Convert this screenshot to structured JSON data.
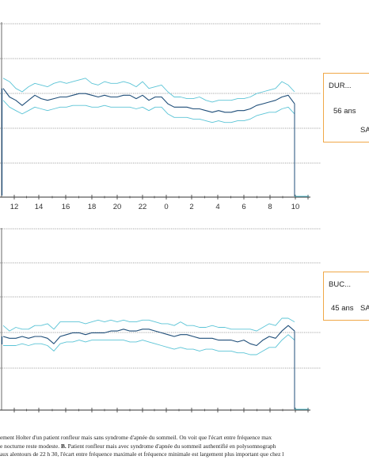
{
  "chart_data": [
    {
      "panel": "A",
      "type": "line",
      "x_ticks": [
        "12",
        "14",
        "16",
        "18",
        "20",
        "22",
        "0",
        "2",
        "4",
        "6",
        "8",
        "10"
      ],
      "y_grid_lines": 4,
      "series": [
        {
          "role": "mean",
          "color": "#1f4e79",
          "x": [
            11,
            11.5,
            12,
            12.5,
            13,
            13.5,
            14,
            14.5,
            15,
            15.5,
            16,
            16.5,
            17,
            17.5,
            18,
            18.5,
            19,
            19.5,
            20,
            20.5,
            21,
            21.5,
            22,
            22.5,
            23,
            23.5,
            0,
            0.5,
            1,
            1.5,
            2,
            2.5,
            3,
            3.5,
            4,
            4.5,
            5,
            5.5,
            6,
            6.5,
            7,
            7.5,
            8,
            8.5,
            9,
            9.5,
            10
          ],
          "y": [
            62,
            57,
            55,
            52,
            55,
            58,
            56,
            55,
            56,
            57,
            57,
            58,
            59,
            59,
            58,
            57,
            58,
            57,
            57,
            58,
            58,
            56,
            58,
            55,
            57,
            57,
            53,
            51,
            51,
            51,
            50,
            50,
            49,
            48,
            49,
            48,
            48,
            49,
            49,
            50,
            52,
            53,
            54,
            55,
            57,
            58,
            53
          ]
        },
        {
          "role": "max",
          "color": "#5bc4d6",
          "x": [
            11,
            11.5,
            12,
            12.5,
            13,
            13.5,
            14,
            14.5,
            15,
            15.5,
            16,
            16.5,
            17,
            17.5,
            18,
            18.5,
            19,
            19.5,
            20,
            20.5,
            21,
            21.5,
            22,
            22.5,
            23,
            23.5,
            0,
            0.5,
            1,
            1.5,
            2,
            2.5,
            3,
            3.5,
            4,
            4.5,
            5,
            5.5,
            6,
            6.5,
            7,
            7.5,
            8,
            8.5,
            9,
            9.5,
            10
          ],
          "y": [
            68,
            66,
            62,
            60,
            63,
            65,
            64,
            63,
            65,
            66,
            65,
            66,
            67,
            68,
            65,
            64,
            66,
            65,
            65,
            66,
            65,
            63,
            66,
            62,
            63,
            64,
            60,
            57,
            57,
            56,
            56,
            57,
            55,
            54,
            55,
            55,
            55,
            56,
            56,
            57,
            59,
            60,
            61,
            62,
            66,
            64,
            60
          ]
        },
        {
          "role": "min",
          "color": "#5bc4d6",
          "x": [
            11,
            11.5,
            12,
            12.5,
            13,
            13.5,
            14,
            14.5,
            15,
            15.5,
            16,
            16.5,
            17,
            17.5,
            18,
            18.5,
            19,
            19.5,
            20,
            20.5,
            21,
            21.5,
            22,
            22.5,
            23,
            23.5,
            0,
            0.5,
            1,
            1.5,
            2,
            2.5,
            3,
            3.5,
            4,
            4.5,
            5,
            5.5,
            6,
            6.5,
            7,
            7.5,
            8,
            8.5,
            9,
            9.5,
            10
          ],
          "y": [
            55,
            51,
            49,
            47,
            49,
            51,
            50,
            49,
            50,
            51,
            51,
            52,
            52,
            52,
            51,
            51,
            52,
            51,
            51,
            51,
            51,
            50,
            51,
            49,
            51,
            51,
            47,
            45,
            45,
            45,
            44,
            44,
            43,
            42,
            43,
            42,
            42,
            43,
            43,
            44,
            46,
            47,
            48,
            48,
            50,
            51,
            47
          ]
        }
      ]
    },
    {
      "panel": "B",
      "type": "line",
      "x_ticks": [
        "12",
        "14",
        "16",
        "18",
        "20",
        "22",
        "0",
        "2",
        "4",
        "6",
        "8",
        "10"
      ],
      "y_grid_lines": 4,
      "series": [
        {
          "role": "mean",
          "color": "#1f4e79",
          "x": [
            11,
            11.5,
            12,
            12.5,
            13,
            13.5,
            14,
            14.5,
            15,
            15.5,
            16,
            16.5,
            17,
            17.5,
            18,
            18.5,
            19,
            19.5,
            20,
            20.5,
            21,
            21.5,
            22,
            22.5,
            23,
            23.5,
            0,
            0.5,
            1,
            1.5,
            2,
            2.5,
            3,
            3.5,
            4,
            4.5,
            5,
            5.5,
            6,
            6.5,
            7,
            7.5,
            8,
            8.5,
            9,
            9.5,
            10
          ],
          "y": [
            40,
            39,
            39,
            40,
            39,
            40,
            40,
            39,
            36,
            40,
            41,
            42,
            42,
            41,
            42,
            42,
            42,
            43,
            43,
            44,
            43,
            43,
            44,
            44,
            43,
            42,
            41,
            40,
            41,
            41,
            40,
            39,
            39,
            39,
            38,
            38,
            38,
            37,
            38,
            36,
            35,
            38,
            40,
            39,
            43,
            46,
            43
          ]
        },
        {
          "role": "max",
          "color": "#5bc4d6",
          "x": [
            11,
            11.5,
            12,
            12.5,
            13,
            13.5,
            14,
            14.5,
            15,
            15.5,
            16,
            16.5,
            17,
            17.5,
            18,
            18.5,
            19,
            19.5,
            20,
            20.5,
            21,
            21.5,
            22,
            22.5,
            23,
            23.5,
            0,
            0.5,
            1,
            1.5,
            2,
            2.5,
            3,
            3.5,
            4,
            4.5,
            5,
            5.5,
            6,
            6.5,
            7,
            7.5,
            8,
            8.5,
            9,
            9.5,
            10
          ],
          "y": [
            46,
            43,
            45,
            44,
            44,
            46,
            46,
            47,
            44,
            48,
            48,
            48,
            48,
            47,
            48,
            49,
            48,
            49,
            48,
            49,
            48,
            48,
            49,
            49,
            48,
            47,
            47,
            46,
            48,
            46,
            46,
            45,
            45,
            46,
            45,
            45,
            44,
            44,
            44,
            44,
            43,
            45,
            47,
            46,
            50,
            50,
            48
          ]
        },
        {
          "role": "min",
          "color": "#5bc4d6",
          "x": [
            11,
            11.5,
            12,
            12.5,
            13,
            13.5,
            14,
            14.5,
            15,
            15.5,
            16,
            16.5,
            17,
            17.5,
            18,
            18.5,
            19,
            19.5,
            20,
            20.5,
            21,
            21.5,
            22,
            22.5,
            23,
            23.5,
            0,
            0.5,
            1,
            1.5,
            2,
            2.5,
            3,
            3.5,
            4,
            4.5,
            5,
            5.5,
            6,
            6.5,
            7,
            7.5,
            8,
            8.5,
            9,
            9.5,
            10
          ],
          "y": [
            35,
            35,
            35,
            36,
            35,
            36,
            36,
            35,
            32,
            36,
            37,
            37,
            38,
            37,
            38,
            38,
            38,
            38,
            38,
            38,
            37,
            37,
            38,
            37,
            36,
            35,
            34,
            33,
            34,
            33,
            33,
            32,
            33,
            33,
            32,
            32,
            32,
            31,
            31,
            30,
            30,
            32,
            34,
            34,
            38,
            41,
            38
          ]
        }
      ]
    }
  ],
  "info_a": {
    "name": "DUR...",
    "age": "56 ans",
    "tag": "SAS"
  },
  "info_b": {
    "name": "BUC...",
    "age": "45 ans",
    "tag": "SAS"
  },
  "caption": {
    "line1": "ement Holter d'un patient ronfleur mais sans syndrome d'apnée du sommeil. On voit que l'écart entre fréquence max",
    "line2a": "e nocturne reste modeste. ",
    "line2b": "B.",
    "line2c": " Patient ronfleur mais avec syndrome d'apnée du sommeil authentifié en polysomnograph",
    "line3": "aux alentours de 22 h 30, l'écart entre fréquence maximale et fréquence minimale est largement plus important que chez l"
  }
}
